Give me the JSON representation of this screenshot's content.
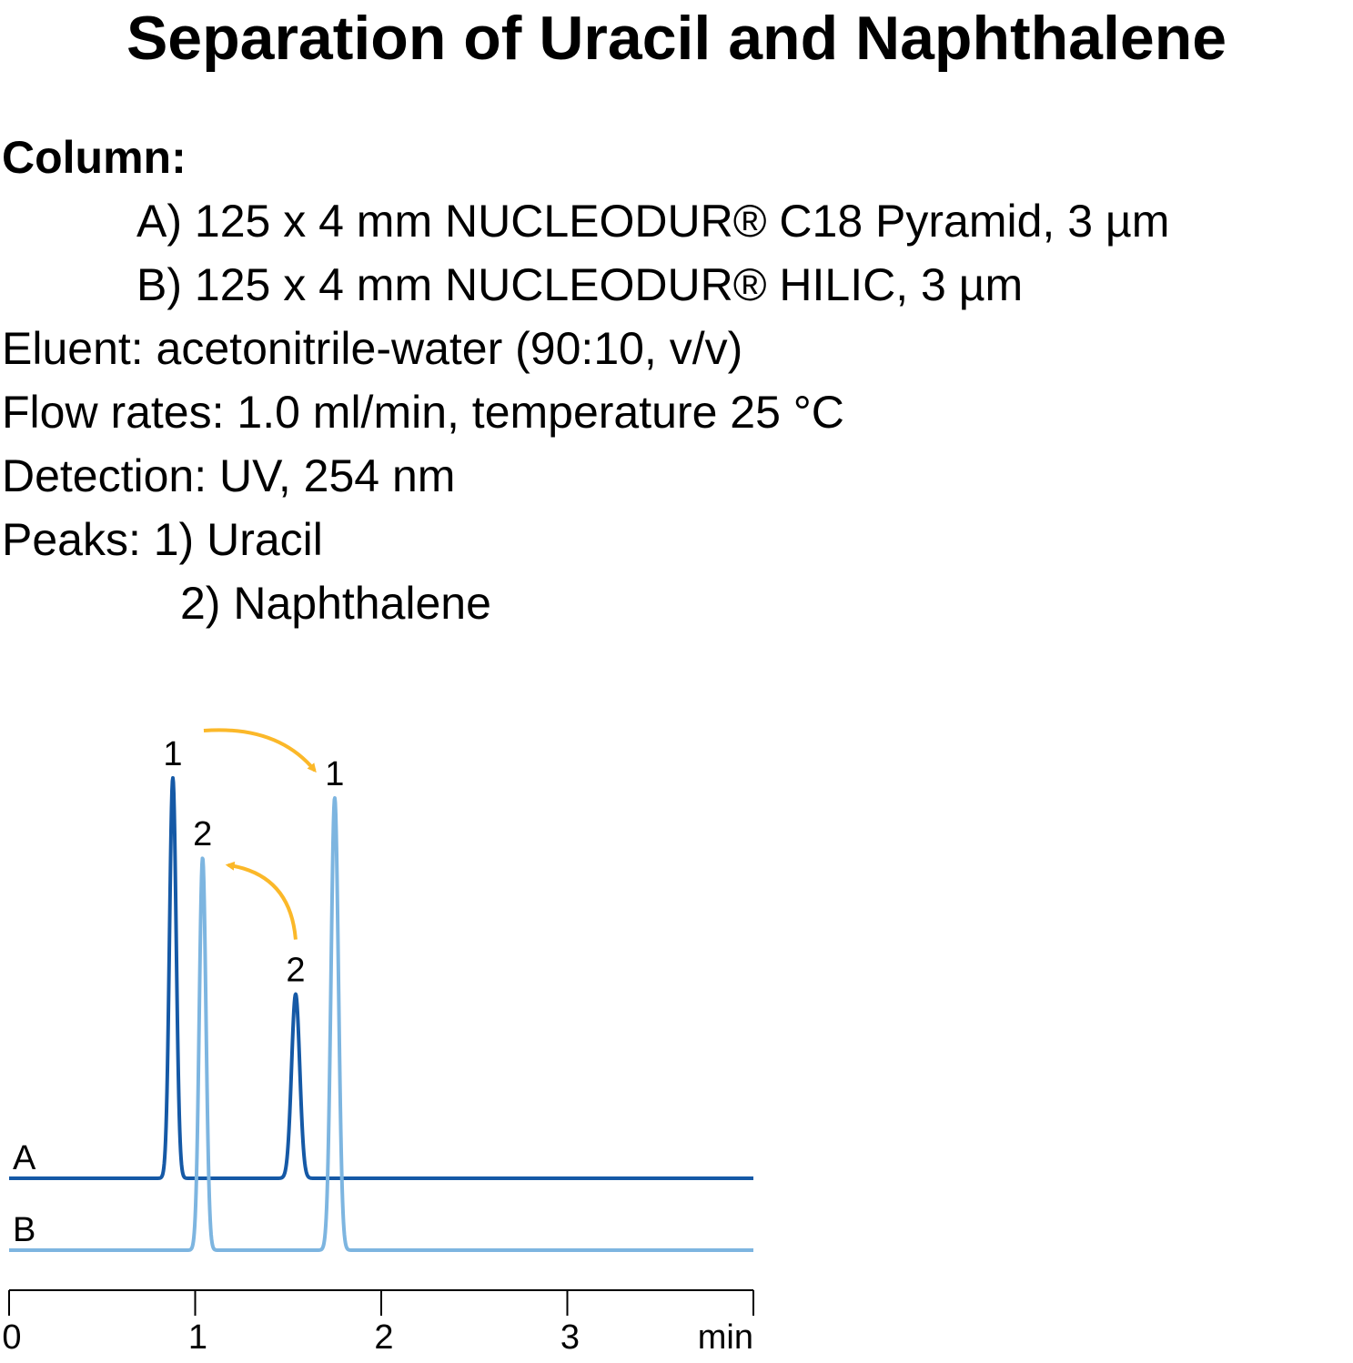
{
  "title": "Separation of Uracil and Naphthalene",
  "conditions": {
    "column_label": "Column:",
    "column_a": "A) 125 x 4 mm NUCLEODUR® C18 Pyramid, 3 µm",
    "column_b": "B) 125 x 4 mm NUCLEODUR® HILIC, 3 µm",
    "eluent": "Eluent: acetonitrile-water (90:10, v/v)",
    "flow": "Flow rates: 1.0 ml/min, temperature 25 °C",
    "detection": "Detection: UV, 254 nm",
    "peaks_1": "Peaks: 1) Uracil",
    "peaks_2": "2) Naphthalene"
  },
  "chart_data": {
    "type": "line",
    "xlabel": "min",
    "xlim": [
      0,
      4
    ],
    "x_ticks": [
      "0",
      "1",
      "2",
      "3"
    ],
    "colors": {
      "A": "#1559a6",
      "B": "#7db5e0",
      "arrow": "#fbb829",
      "axis": "#000000"
    },
    "series": [
      {
        "name": "A",
        "color": "#1559a6",
        "peaks": [
          {
            "label": "1",
            "time": 0.88,
            "height": 1.0,
            "width": 0.018
          },
          {
            "label": "2",
            "time": 1.54,
            "height": 0.46,
            "width": 0.022
          }
        ]
      },
      {
        "name": "B",
        "color": "#7db5e0",
        "peaks": [
          {
            "label": "2",
            "time": 1.04,
            "height": 0.98,
            "width": 0.018
          },
          {
            "label": "1",
            "time": 1.75,
            "height": 1.13,
            "width": 0.02
          }
        ]
      }
    ],
    "annotations": [
      {
        "type": "arrow",
        "description": "peak 1 shifts to later retention on B",
        "from": "A:1",
        "to": "B:1"
      },
      {
        "type": "arrow",
        "description": "peak 2 shifts to earlier retention on B",
        "from": "A:2",
        "to": "B:2"
      }
    ]
  }
}
